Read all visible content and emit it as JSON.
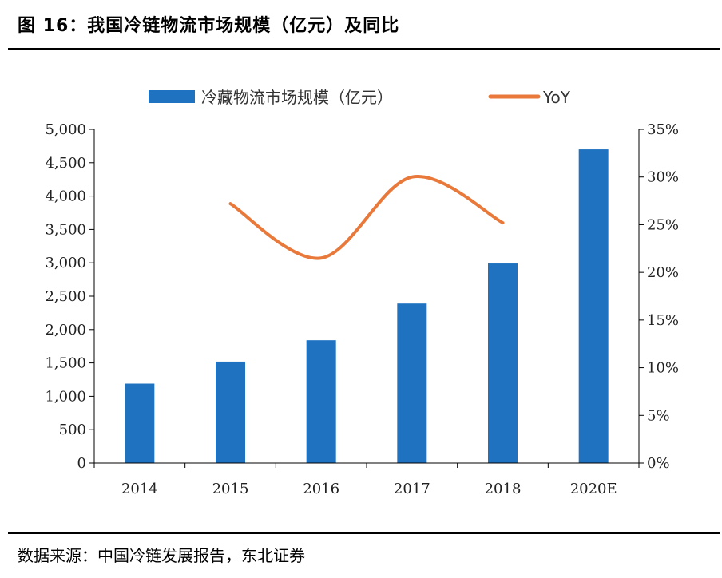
{
  "header": {
    "title": "图 16：我国冷链物流市场规模（亿元）及同比"
  },
  "footer": {
    "source": "数据来源：中国冷链发展报告，东北证券"
  },
  "colors": {
    "bar": "#1E72C0",
    "line": "#E8793A",
    "axis": "#000000"
  },
  "chart_data": {
    "type": "bar",
    "categories": [
      "2014",
      "2015",
      "2016",
      "2017",
      "2018",
      "2020E"
    ],
    "series": [
      {
        "name": "冷藏物流市场规模（亿元）",
        "type": "bar",
        "axis": "left",
        "values": [
          1190,
          1520,
          1840,
          2390,
          2990,
          4700
        ]
      },
      {
        "name": "YoY",
        "type": "line",
        "axis": "right",
        "values": [
          null,
          0.272,
          0.215,
          0.3,
          0.252,
          null
        ]
      }
    ],
    "y_left": {
      "min": 0,
      "max": 5000,
      "ticks": [
        "0",
        "500",
        "1,000",
        "1,500",
        "2,000",
        "2,500",
        "3,000",
        "3,500",
        "4,000",
        "4,500",
        "5,000"
      ]
    },
    "y_right": {
      "min": 0,
      "max": 0.35,
      "ticks": [
        "0%",
        "5%",
        "10%",
        "15%",
        "20%",
        "25%",
        "30%",
        "35%"
      ]
    },
    "legend_position": "top",
    "grid": false
  }
}
